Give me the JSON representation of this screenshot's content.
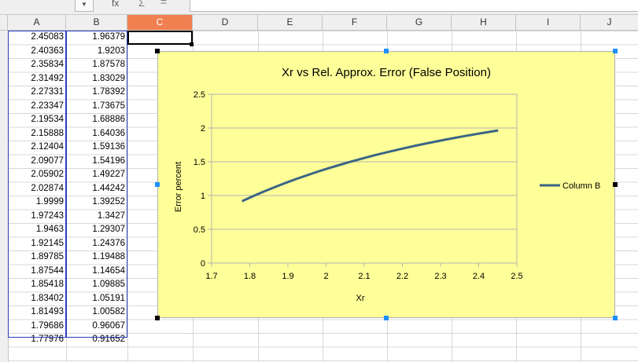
{
  "toolbar": {
    "namebox_dropdown_icon": "chevron-down-icon",
    "function_icon_glyph": "fx",
    "sum_icon_glyph": "Σ",
    "equals_icon_glyph": "=",
    "formula_value": ""
  },
  "columns": [
    "A",
    "B",
    "C",
    "D",
    "E",
    "F",
    "G",
    "H",
    "I",
    "J"
  ],
  "active_column": "C",
  "cells": {
    "A": [
      "2.45083",
      "2.40363",
      "2.35834",
      "2.31492",
      "2.27331",
      "2.23347",
      "2.19534",
      "2.15888",
      "2.12404",
      "2.09077",
      "2.05902",
      "2.02874",
      "1.9999",
      "1.97243",
      "1.9463",
      "1.92145",
      "1.89785",
      "1.87544",
      "1.85418",
      "1.83402",
      "1.81493",
      "1.79686",
      "1.77976"
    ],
    "B": [
      "1.96379",
      "1.9203",
      "1.87578",
      "1.83029",
      "1.78392",
      "1.73675",
      "1.68886",
      "1.64036",
      "1.59136",
      "1.54196",
      "1.49227",
      "1.44242",
      "1.39252",
      "1.3427",
      "1.29307",
      "1.24376",
      "1.19488",
      "1.14654",
      "1.09885",
      "1.05191",
      "1.00582",
      "0.96067",
      "0.91652"
    ]
  },
  "colors": {
    "chart_background": "#ffff99",
    "series_line": "#3b6585",
    "selection_border": "#2a3fbf",
    "active_column_header": "#f08050",
    "selection_handle": "#1e90ff"
  },
  "chart_data": {
    "type": "line",
    "title": "Xr vs Rel. Approx. Error (False Position)",
    "xlabel": "Xr",
    "ylabel": "Error percent",
    "xlim": [
      1.7,
      2.5
    ],
    "ylim": [
      0,
      2.5
    ],
    "x_ticks": [
      "1.7",
      "1.8",
      "1.9",
      "2",
      "2.1",
      "2.2",
      "2.3",
      "2.4",
      "2.5"
    ],
    "y_ticks": [
      "0",
      "0.5",
      "1",
      "1.5",
      "2",
      "2.5"
    ],
    "grid": "horizontal",
    "legend_position": "right",
    "series": [
      {
        "name": "Column B",
        "x": [
          2.45083,
          2.40363,
          2.35834,
          2.31492,
          2.27331,
          2.23347,
          2.19534,
          2.15888,
          2.12404,
          2.09077,
          2.05902,
          2.02874,
          1.9999,
          1.97243,
          1.9463,
          1.92145,
          1.89785,
          1.87544,
          1.85418,
          1.83402,
          1.81493,
          1.79686,
          1.77976
        ],
        "y": [
          1.96379,
          1.9203,
          1.87578,
          1.83029,
          1.78392,
          1.73675,
          1.68886,
          1.64036,
          1.59136,
          1.54196,
          1.49227,
          1.44242,
          1.39252,
          1.3427,
          1.29307,
          1.24376,
          1.19488,
          1.14654,
          1.09885,
          1.05191,
          1.00582,
          0.96067,
          0.91652
        ]
      }
    ]
  }
}
